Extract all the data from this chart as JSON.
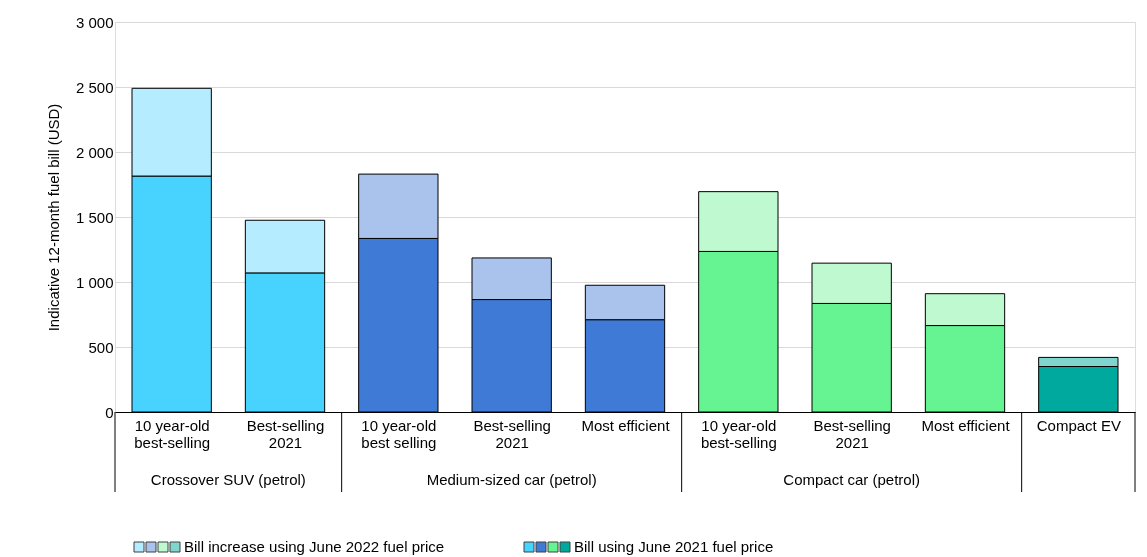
{
  "chart_data": {
    "type": "bar",
    "stacked": true,
    "ylabel": "Indicative 12-month fuel bill (USD)",
    "categories": [
      "10 year-old\nbest-selling",
      "Best-selling\n2021",
      "10 year-old\nbest selling",
      "Best-selling\n2021",
      "Most efficient",
      "10 year-old\nbest-selling",
      "Best-selling\n2021",
      "Most efficient",
      "Compact EV"
    ],
    "annotations": [
      "Crossover SUV (petrol)",
      "Medium-sized car (petrol)",
      "Compact car (petrol)"
    ],
    "series": [
      {
        "name": "Bill using June 2021 fuel price",
        "colors": [
          "#48d3ff",
          "#48d3ff",
          "#3f7bd6",
          "#3f7bd6",
          "#3f7bd6",
          "#66f391",
          "#66f391",
          "#66f391",
          "#00a99d"
        ],
        "values": [
          1815,
          1070,
          1335,
          865,
          710,
          1235,
          835,
          665,
          350
        ]
      },
      {
        "name": "Bill increase using June 2022 fuel price",
        "colors": [
          "#b5ecff",
          "#b5ecff",
          "#a9c3ec",
          "#a9c3ec",
          "#a9c3ec",
          "#bff9d0",
          "#bff9d0",
          "#bff9d0",
          "#80d6cf"
        ],
        "values": [
          675,
          405,
          495,
          320,
          265,
          460,
          310,
          245,
          70
        ]
      }
    ],
    "ylim": [
      0,
      3000
    ],
    "yticks": [
      0,
      500,
      {
        "value": 1000,
        "label": "1 000"
      },
      {
        "value": 1500,
        "label": "1 500"
      },
      {
        "value": 2000,
        "label": "2 000"
      },
      {
        "value": 2500,
        "label": "2 500"
      },
      {
        "value": 3000,
        "label": "3 000"
      }
    ],
    "grid": "y",
    "legend": "bottom"
  }
}
